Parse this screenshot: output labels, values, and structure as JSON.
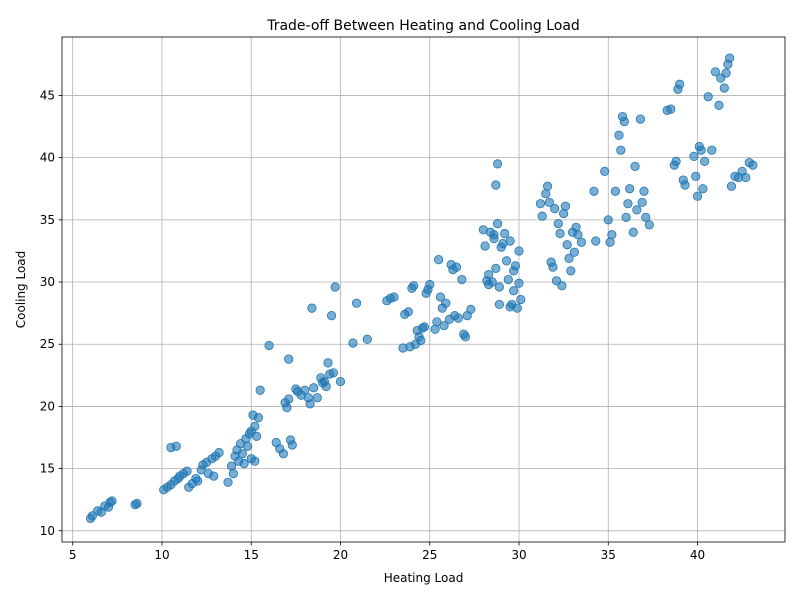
{
  "chart_data": {
    "type": "scatter",
    "title": "Trade-off Between Heating and Cooling Load",
    "xlabel": "Heating Load",
    "ylabel": "Cooling Load",
    "xlim": [
      4.4,
      44.9
    ],
    "ylim": [
      9.1,
      49.7
    ],
    "xticks": [
      5,
      10,
      15,
      20,
      25,
      30,
      35,
      40
    ],
    "yticks": [
      10,
      15,
      20,
      25,
      30,
      35,
      40,
      45
    ],
    "grid": true,
    "marker_color": "#1f77b4",
    "points": [
      [
        6.0,
        11.0
      ],
      [
        6.1,
        11.2
      ],
      [
        6.4,
        11.6
      ],
      [
        6.6,
        11.5
      ],
      [
        6.8,
        12.0
      ],
      [
        7.0,
        11.9
      ],
      [
        7.1,
        12.3
      ],
      [
        7.2,
        12.4
      ],
      [
        8.5,
        12.1
      ],
      [
        8.6,
        12.2
      ],
      [
        10.1,
        13.3
      ],
      [
        10.3,
        13.5
      ],
      [
        10.5,
        13.7
      ],
      [
        10.7,
        14.0
      ],
      [
        10.9,
        14.2
      ],
      [
        11.0,
        14.4
      ],
      [
        11.2,
        14.6
      ],
      [
        11.4,
        14.8
      ],
      [
        11.5,
        13.5
      ],
      [
        11.7,
        13.8
      ],
      [
        11.9,
        14.2
      ],
      [
        12.0,
        14.0
      ],
      [
        12.2,
        14.9
      ],
      [
        12.3,
        15.3
      ],
      [
        12.5,
        15.5
      ],
      [
        12.6,
        14.6
      ],
      [
        12.8,
        15.8
      ],
      [
        12.9,
        14.4
      ],
      [
        13.0,
        16.0
      ],
      [
        13.2,
        16.3
      ],
      [
        10.5,
        16.7
      ],
      [
        10.8,
        16.8
      ],
      [
        13.7,
        13.9
      ],
      [
        13.9,
        15.2
      ],
      [
        14.0,
        14.6
      ],
      [
        14.1,
        16.0
      ],
      [
        14.2,
        16.5
      ],
      [
        14.3,
        15.6
      ],
      [
        14.4,
        17.0
      ],
      [
        14.5,
        16.2
      ],
      [
        14.6,
        15.4
      ],
      [
        14.7,
        17.4
      ],
      [
        14.8,
        16.8
      ],
      [
        14.9,
        17.8
      ],
      [
        15.0,
        18.0
      ],
      [
        15.1,
        19.3
      ],
      [
        15.2,
        18.4
      ],
      [
        15.3,
        17.6
      ],
      [
        15.4,
        19.1
      ],
      [
        15.0,
        15.8
      ],
      [
        15.2,
        15.6
      ],
      [
        15.5,
        21.3
      ],
      [
        16.0,
        24.9
      ],
      [
        16.4,
        17.1
      ],
      [
        16.6,
        16.6
      ],
      [
        16.8,
        16.2
      ],
      [
        16.9,
        20.3
      ],
      [
        17.0,
        19.9
      ],
      [
        17.1,
        20.6
      ],
      [
        17.2,
        17.3
      ],
      [
        17.3,
        16.9
      ],
      [
        17.1,
        23.8
      ],
      [
        17.5,
        21.4
      ],
      [
        17.6,
        21.2
      ],
      [
        17.8,
        20.9
      ],
      [
        18.0,
        21.3
      ],
      [
        18.2,
        20.7
      ],
      [
        18.3,
        20.2
      ],
      [
        18.4,
        27.9
      ],
      [
        18.5,
        21.5
      ],
      [
        18.7,
        20.7
      ],
      [
        18.9,
        22.3
      ],
      [
        19.0,
        21.9
      ],
      [
        19.1,
        22.0
      ],
      [
        19.2,
        21.6
      ],
      [
        19.3,
        23.5
      ],
      [
        19.4,
        22.6
      ],
      [
        19.5,
        27.3
      ],
      [
        19.6,
        22.7
      ],
      [
        19.7,
        29.6
      ],
      [
        20.0,
        22.0
      ],
      [
        20.7,
        25.1
      ],
      [
        20.9,
        28.3
      ],
      [
        21.5,
        25.4
      ],
      [
        22.6,
        28.5
      ],
      [
        22.8,
        28.7
      ],
      [
        23.0,
        28.8
      ],
      [
        23.5,
        24.7
      ],
      [
        23.6,
        27.4
      ],
      [
        23.8,
        27.6
      ],
      [
        23.9,
        24.8
      ],
      [
        24.0,
        29.5
      ],
      [
        24.1,
        29.7
      ],
      [
        24.2,
        25.0
      ],
      [
        24.3,
        26.1
      ],
      [
        24.4,
        25.6
      ],
      [
        24.5,
        25.3
      ],
      [
        24.6,
        26.3
      ],
      [
        24.7,
        26.4
      ],
      [
        24.8,
        29.1
      ],
      [
        24.9,
        29.4
      ],
      [
        25.0,
        29.8
      ],
      [
        25.3,
        26.2
      ],
      [
        25.4,
        26.8
      ],
      [
        25.5,
        31.8
      ],
      [
        25.6,
        28.8
      ],
      [
        25.7,
        27.9
      ],
      [
        25.8,
        26.5
      ],
      [
        25.9,
        28.3
      ],
      [
        26.1,
        27.0
      ],
      [
        26.2,
        31.4
      ],
      [
        26.3,
        31.0
      ],
      [
        26.4,
        27.3
      ],
      [
        26.5,
        31.2
      ],
      [
        26.6,
        27.1
      ],
      [
        26.8,
        30.2
      ],
      [
        26.9,
        25.8
      ],
      [
        27.0,
        25.6
      ],
      [
        27.1,
        27.3
      ],
      [
        27.3,
        27.8
      ],
      [
        28.0,
        34.2
      ],
      [
        28.1,
        32.9
      ],
      [
        28.2,
        30.1
      ],
      [
        28.3,
        29.8
      ],
      [
        28.4,
        34.0
      ],
      [
        28.5,
        30.0
      ],
      [
        28.6,
        33.5
      ],
      [
        28.7,
        31.1
      ],
      [
        28.8,
        34.7
      ],
      [
        28.9,
        29.6
      ],
      [
        29.0,
        32.8
      ],
      [
        29.1,
        33.1
      ],
      [
        29.2,
        33.9
      ],
      [
        29.3,
        31.7
      ],
      [
        29.4,
        30.2
      ],
      [
        29.5,
        33.3
      ],
      [
        29.6,
        28.2
      ],
      [
        29.7,
        30.9
      ],
      [
        29.8,
        31.3
      ],
      [
        29.9,
        27.9
      ],
      [
        30.0,
        32.5
      ],
      [
        30.1,
        28.6
      ],
      [
        28.7,
        37.8
      ],
      [
        28.8,
        39.5
      ],
      [
        29.5,
        28.0
      ],
      [
        29.7,
        29.3
      ],
      [
        30.0,
        29.9
      ],
      [
        28.3,
        30.6
      ],
      [
        28.6,
        33.8
      ],
      [
        28.9,
        28.2
      ],
      [
        31.2,
        36.3
      ],
      [
        31.3,
        35.3
      ],
      [
        31.5,
        37.1
      ],
      [
        31.6,
        37.7
      ],
      [
        31.7,
        36.4
      ],
      [
        31.8,
        31.6
      ],
      [
        31.9,
        31.2
      ],
      [
        32.0,
        35.9
      ],
      [
        32.1,
        30.1
      ],
      [
        32.2,
        34.7
      ],
      [
        32.3,
        33.9
      ],
      [
        32.4,
        29.7
      ],
      [
        32.5,
        35.5
      ],
      [
        32.6,
        36.1
      ],
      [
        32.7,
        33.0
      ],
      [
        32.8,
        31.9
      ],
      [
        32.9,
        30.9
      ],
      [
        33.0,
        34.0
      ],
      [
        33.1,
        32.4
      ],
      [
        33.2,
        34.4
      ],
      [
        33.3,
        33.8
      ],
      [
        33.5,
        33.2
      ],
      [
        34.2,
        37.3
      ],
      [
        34.3,
        33.3
      ],
      [
        34.8,
        38.9
      ],
      [
        35.0,
        35.0
      ],
      [
        35.1,
        33.2
      ],
      [
        35.2,
        33.8
      ],
      [
        35.4,
        37.3
      ],
      [
        35.6,
        41.8
      ],
      [
        35.7,
        40.6
      ],
      [
        35.8,
        43.3
      ],
      [
        35.9,
        42.9
      ],
      [
        36.0,
        35.2
      ],
      [
        36.1,
        36.3
      ],
      [
        36.2,
        37.5
      ],
      [
        36.4,
        34.0
      ],
      [
        36.5,
        39.3
      ],
      [
        36.6,
        35.8
      ],
      [
        36.8,
        43.1
      ],
      [
        36.9,
        36.4
      ],
      [
        37.0,
        37.3
      ],
      [
        37.1,
        35.2
      ],
      [
        37.3,
        34.6
      ],
      [
        38.3,
        43.8
      ],
      [
        38.5,
        43.9
      ],
      [
        38.7,
        39.4
      ],
      [
        38.8,
        39.7
      ],
      [
        38.9,
        45.5
      ],
      [
        39.0,
        45.9
      ],
      [
        39.2,
        38.2
      ],
      [
        39.3,
        37.8
      ],
      [
        39.8,
        40.1
      ],
      [
        39.9,
        38.5
      ],
      [
        40.0,
        36.9
      ],
      [
        40.1,
        40.9
      ],
      [
        40.2,
        40.6
      ],
      [
        40.3,
        37.5
      ],
      [
        40.4,
        39.7
      ],
      [
        40.6,
        44.9
      ],
      [
        40.8,
        40.6
      ],
      [
        41.0,
        46.9
      ],
      [
        41.2,
        44.2
      ],
      [
        41.3,
        46.4
      ],
      [
        41.5,
        45.6
      ],
      [
        41.6,
        46.8
      ],
      [
        41.7,
        47.5
      ],
      [
        41.8,
        48.0
      ],
      [
        41.9,
        37.7
      ],
      [
        42.1,
        38.5
      ],
      [
        42.3,
        38.4
      ],
      [
        42.5,
        38.9
      ],
      [
        42.7,
        38.4
      ],
      [
        42.9,
        39.6
      ],
      [
        43.1,
        39.4
      ]
    ]
  }
}
